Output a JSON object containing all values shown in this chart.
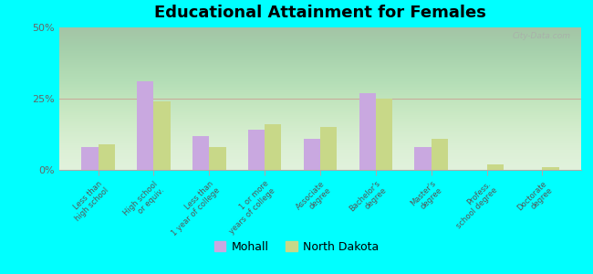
{
  "title": "Educational Attainment for Females",
  "categories": [
    "Less than\nhigh school",
    "High school\nor equiv.",
    "Less than\n1 year of college",
    "1 or more\nyears of college",
    "Associate\ndegree",
    "Bachelor's\ndegree",
    "Master's\ndegree",
    "Profess.\nschool degree",
    "Doctorate\ndegree"
  ],
  "mohall": [
    8,
    31,
    12,
    14,
    11,
    27,
    8,
    0,
    0
  ],
  "north_dakota": [
    9,
    24,
    8,
    16,
    15,
    25,
    11,
    2,
    1
  ],
  "mohall_color": "#c9a8e0",
  "nd_color": "#c8d888",
  "background_top": "#e8f5e0",
  "background_bottom": "#f0f8e8",
  "outer_background": "#00ffff",
  "ylim": [
    0,
    50
  ],
  "yticks": [
    0,
    25,
    50
  ],
  "ytick_labels": [
    "0%",
    "25%",
    "50%"
  ],
  "legend_mohall": "Mohall",
  "legend_nd": "North Dakota",
  "bar_width": 0.3
}
